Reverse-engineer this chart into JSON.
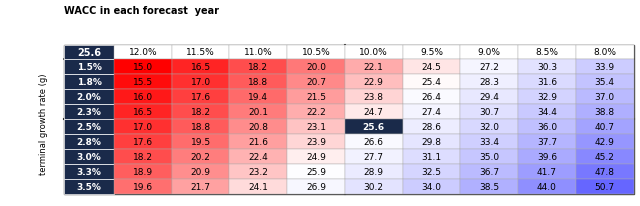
{
  "title": "WACC in each forecast  year",
  "col_headers": [
    "25.6",
    "12.0%",
    "11.5%",
    "11.0%",
    "10.5%",
    "10.0%",
    "9.5%",
    "9.0%",
    "8.5%",
    "8.0%"
  ],
  "row_headers": [
    "1.5%",
    "1.8%",
    "2.0%",
    "2.3%",
    "2.5%",
    "2.8%",
    "3.0%",
    "3.3%",
    "3.5%"
  ],
  "ylabel": "terminal growth rate (g)",
  "values": [
    [
      15.0,
      16.5,
      18.2,
      20.0,
      22.1,
      24.5,
      27.2,
      30.3,
      33.9
    ],
    [
      15.5,
      17.0,
      18.8,
      20.7,
      22.9,
      25.4,
      28.3,
      31.6,
      35.4
    ],
    [
      16.0,
      17.6,
      19.4,
      21.5,
      23.8,
      26.4,
      29.4,
      32.9,
      37.0
    ],
    [
      16.5,
      18.2,
      20.1,
      22.2,
      24.7,
      27.4,
      30.7,
      34.4,
      38.8
    ],
    [
      17.0,
      18.8,
      20.8,
      23.1,
      25.6,
      28.6,
      32.0,
      36.0,
      40.7
    ],
    [
      17.6,
      19.5,
      21.6,
      23.9,
      26.6,
      29.8,
      33.4,
      37.7,
      42.9
    ],
    [
      18.2,
      20.2,
      22.4,
      24.9,
      27.7,
      31.1,
      35.0,
      39.6,
      45.2
    ],
    [
      18.9,
      20.9,
      23.2,
      25.9,
      28.9,
      32.5,
      36.7,
      41.7,
      47.8
    ],
    [
      19.6,
      21.7,
      24.1,
      26.9,
      30.2,
      34.0,
      38.5,
      44.0,
      50.7
    ]
  ],
  "highlight_cell": [
    4,
    4
  ],
  "dark_navy": "#1a2a4a",
  "highlight_dark_navy": "#1a2a4a",
  "thick_border_after_col": 4,
  "thick_border_after_row": 4,
  "col_divider_col": 5,
  "row_divider_row": 5
}
